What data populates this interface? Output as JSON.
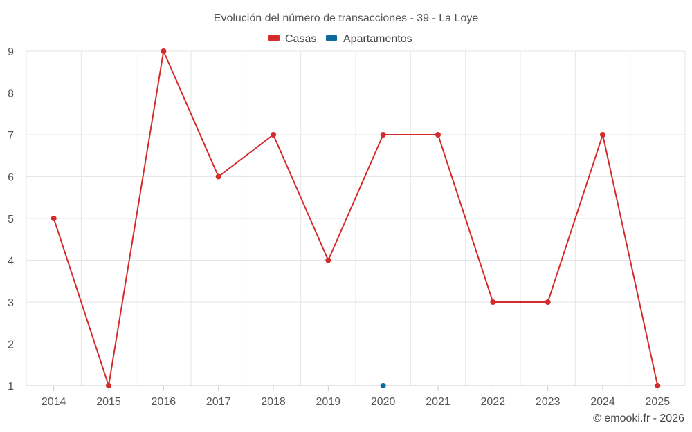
{
  "chart_data": {
    "type": "line",
    "title": "Evolución del número de transacciones - 39 - La Loye",
    "categories": [
      "2014",
      "2015",
      "2016",
      "2017",
      "2018",
      "2019",
      "2020",
      "2021",
      "2022",
      "2023",
      "2024",
      "2025"
    ],
    "series": [
      {
        "name": "Casas",
        "color": "#d42a2a",
        "values": [
          5,
          1,
          9,
          6,
          7,
          4,
          7,
          7,
          3,
          3,
          7,
          1
        ]
      },
      {
        "name": "Apartamentos",
        "color": "#0d6a9e",
        "values": [
          null,
          null,
          null,
          null,
          null,
          null,
          1,
          null,
          null,
          null,
          null,
          null
        ]
      }
    ],
    "ylim": [
      1,
      9
    ],
    "yticks": [
      1,
      2,
      3,
      4,
      5,
      6,
      7,
      8,
      9
    ],
    "grid": true,
    "legend": "top-center"
  },
  "credit": "© emooki.fr - 2026"
}
